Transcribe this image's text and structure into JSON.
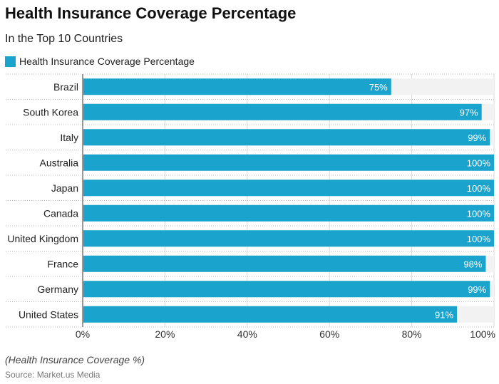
{
  "header": {
    "title": "Health Insurance Coverage Percentage",
    "subtitle": "In the Top 10 Countries"
  },
  "footer": {
    "note": "(Health Insurance Coverage %)",
    "source": "Source: Market.us Media"
  },
  "colors": {
    "bar": "#1aa3cc",
    "track": "#f2f2f2",
    "grid": "#d8d8d8"
  },
  "chart_data": {
    "type": "bar",
    "orientation": "horizontal",
    "categories": [
      "Brazil",
      "South Korea",
      "Italy",
      "Australia",
      "Japan",
      "Canada",
      "United Kingdom",
      "France",
      "Germany",
      "United States"
    ],
    "series": [
      {
        "name": "Health Insurance Coverage Percentage",
        "values": [
          75,
          97,
          99,
          100,
          100,
          100,
          100,
          98,
          99,
          91
        ]
      }
    ],
    "value_labels": [
      "75%",
      "97%",
      "99%",
      "100%",
      "100%",
      "100%",
      "100%",
      "98%",
      "99%",
      "91%"
    ],
    "xlim": [
      0,
      100
    ],
    "xticks": [
      0,
      20,
      40,
      60,
      80,
      100
    ],
    "xtick_labels": [
      "0%",
      "20%",
      "40%",
      "60%",
      "80%",
      "100%"
    ],
    "grid": true,
    "legend_position": "top-left"
  }
}
